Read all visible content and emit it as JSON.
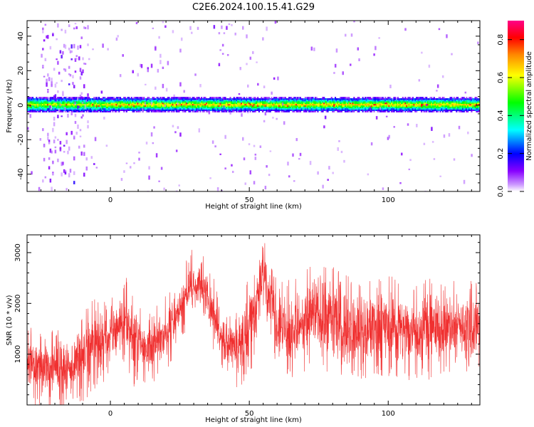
{
  "figure": {
    "title": "C2E6.2024.100.15.41.G29"
  },
  "chart_data": [
    {
      "type": "heatmap",
      "xlabel": "Height of straight line (km)",
      "ylabel": "Frequency (Hz)",
      "xlim": [
        -30,
        133
      ],
      "ylim": [
        -50,
        49
      ],
      "xticks": [
        0,
        50,
        100
      ],
      "yticks": [
        -40,
        -20,
        0,
        20,
        40
      ],
      "signal_band_hz": [
        -4,
        4
      ],
      "colorbar": {
        "label": "Normalized spectral amplitude",
        "range": [
          0,
          0.9
        ],
        "ticks": [
          "0.0",
          "0.2",
          "0.4",
          "0.6",
          "0.8"
        ],
        "colors": [
          "#ffffff",
          "#8800ff",
          "#0000ff",
          "#00ffff",
          "#00ff00",
          "#ffff00",
          "#ff8800",
          "#ff0000",
          "#ff0088"
        ]
      }
    },
    {
      "type": "line",
      "xlabel": "Height of straight line (km)",
      "ylabel": "SNR (10 * v/v)",
      "xlim": [
        -30,
        133
      ],
      "ylim": [
        0,
        3350
      ],
      "xticks": [
        0,
        50,
        100
      ],
      "yticks": [
        1000,
        2000,
        3000
      ],
      "color": "#f03030",
      "envelope": {
        "x": [
          -30,
          -25,
          -20,
          -15,
          -10,
          -5,
          0,
          5,
          8,
          10,
          15,
          20,
          25,
          28,
          32,
          35,
          40,
          45,
          50,
          53,
          55,
          57,
          60,
          65,
          70,
          75,
          80,
          85,
          90,
          95,
          100,
          105,
          110,
          115,
          120,
          125,
          130,
          133
        ],
        "low": [
          200,
          150,
          100,
          150,
          300,
          500,
          900,
          1100,
          500,
          700,
          600,
          900,
          1400,
          1800,
          1900,
          1600,
          900,
          500,
          800,
          1400,
          2000,
          1700,
          900,
          700,
          900,
          1000,
          800,
          700,
          700,
          800,
          800,
          750,
          700,
          750,
          800,
          850,
          800,
          800
        ],
        "high": [
          1400,
          1300,
          1200,
          1300,
          1700,
          1900,
          1800,
          2300,
          2200,
          1700,
          1700,
          1900,
          2300,
          2800,
          3000,
          2600,
          1800,
          1600,
          2300,
          2800,
          3300,
          2800,
          2300,
          2200,
          2400,
          2700,
          2500,
          2300,
          2200,
          2300,
          2300,
          2300,
          2200,
          2300,
          2200,
          2300,
          2200,
          2300
        ]
      }
    }
  ]
}
